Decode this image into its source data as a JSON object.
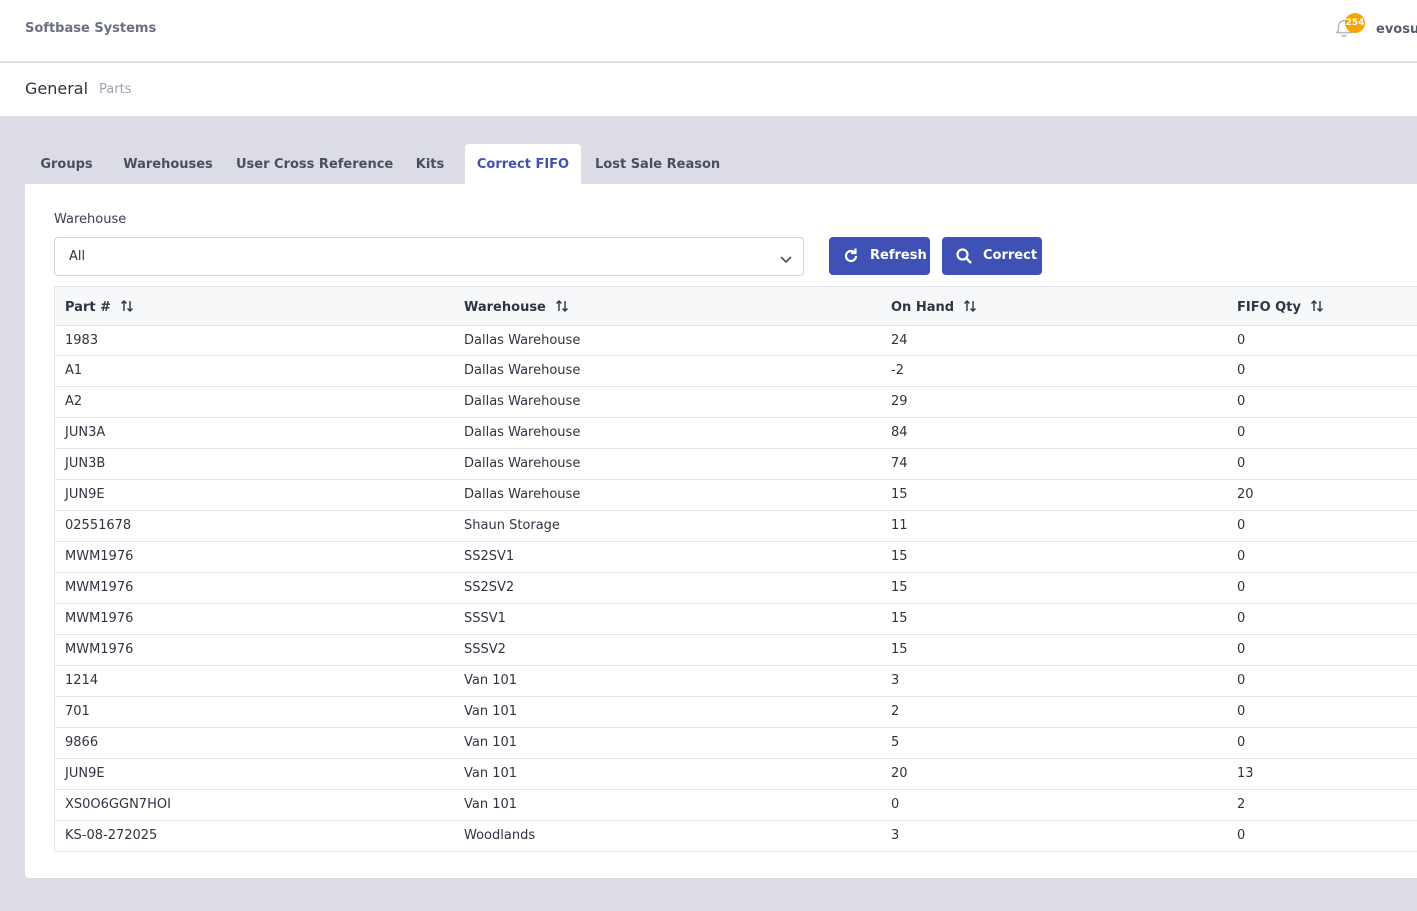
{
  "app": {
    "brand": "Softbase Systems",
    "notification_count": "254",
    "user": "evosup"
  },
  "header": {
    "title": "General",
    "breadcrumb": "Parts"
  },
  "tabs": [
    {
      "label": "Groups",
      "active": false
    },
    {
      "label": "Warehouses",
      "active": false
    },
    {
      "label": "User Cross Reference",
      "active": false
    },
    {
      "label": "Kits",
      "active": false
    },
    {
      "label": "Correct FIFO",
      "active": true
    },
    {
      "label": "Lost Sale Reason",
      "active": false
    }
  ],
  "filter": {
    "label": "Warehouse",
    "value": "All"
  },
  "buttons": {
    "refresh": "Refresh",
    "correct": "Correct"
  },
  "table": {
    "columns": [
      "Part #",
      "Warehouse",
      "On Hand",
      "FIFO Qty"
    ],
    "rows": [
      [
        "1983",
        "Dallas Warehouse",
        "24",
        "0"
      ],
      [
        "A1",
        "Dallas Warehouse",
        "-2",
        "0"
      ],
      [
        "A2",
        "Dallas Warehouse",
        "29",
        "0"
      ],
      [
        "JUN3A",
        "Dallas Warehouse",
        "84",
        "0"
      ],
      [
        "JUN3B",
        "Dallas Warehouse",
        "74",
        "0"
      ],
      [
        "JUN9E",
        "Dallas Warehouse",
        "15",
        "20"
      ],
      [
        "02551678",
        "Shaun Storage",
        "11",
        "0"
      ],
      [
        "MWM1976",
        "SS2SV1",
        "15",
        "0"
      ],
      [
        "MWM1976",
        "SS2SV2",
        "15",
        "0"
      ],
      [
        "MWM1976",
        "SSSV1",
        "15",
        "0"
      ],
      [
        "MWM1976",
        "SSSV2",
        "15",
        "0"
      ],
      [
        "1214",
        "Van 101",
        "3",
        "0"
      ],
      [
        "701",
        "Van 101",
        "2",
        "0"
      ],
      [
        "9866",
        "Van 101",
        "5",
        "0"
      ],
      [
        "JUN9E",
        "Van 101",
        "20",
        "13"
      ],
      [
        "XS0O6GGN7HOI",
        "Van 101",
        "0",
        "2"
      ],
      [
        "KS-08-272025",
        "Woodlands",
        "3",
        "0"
      ]
    ]
  },
  "colors": {
    "accent": "#3f51b5",
    "badge": "#f5a500",
    "background": "#dcdce6"
  }
}
